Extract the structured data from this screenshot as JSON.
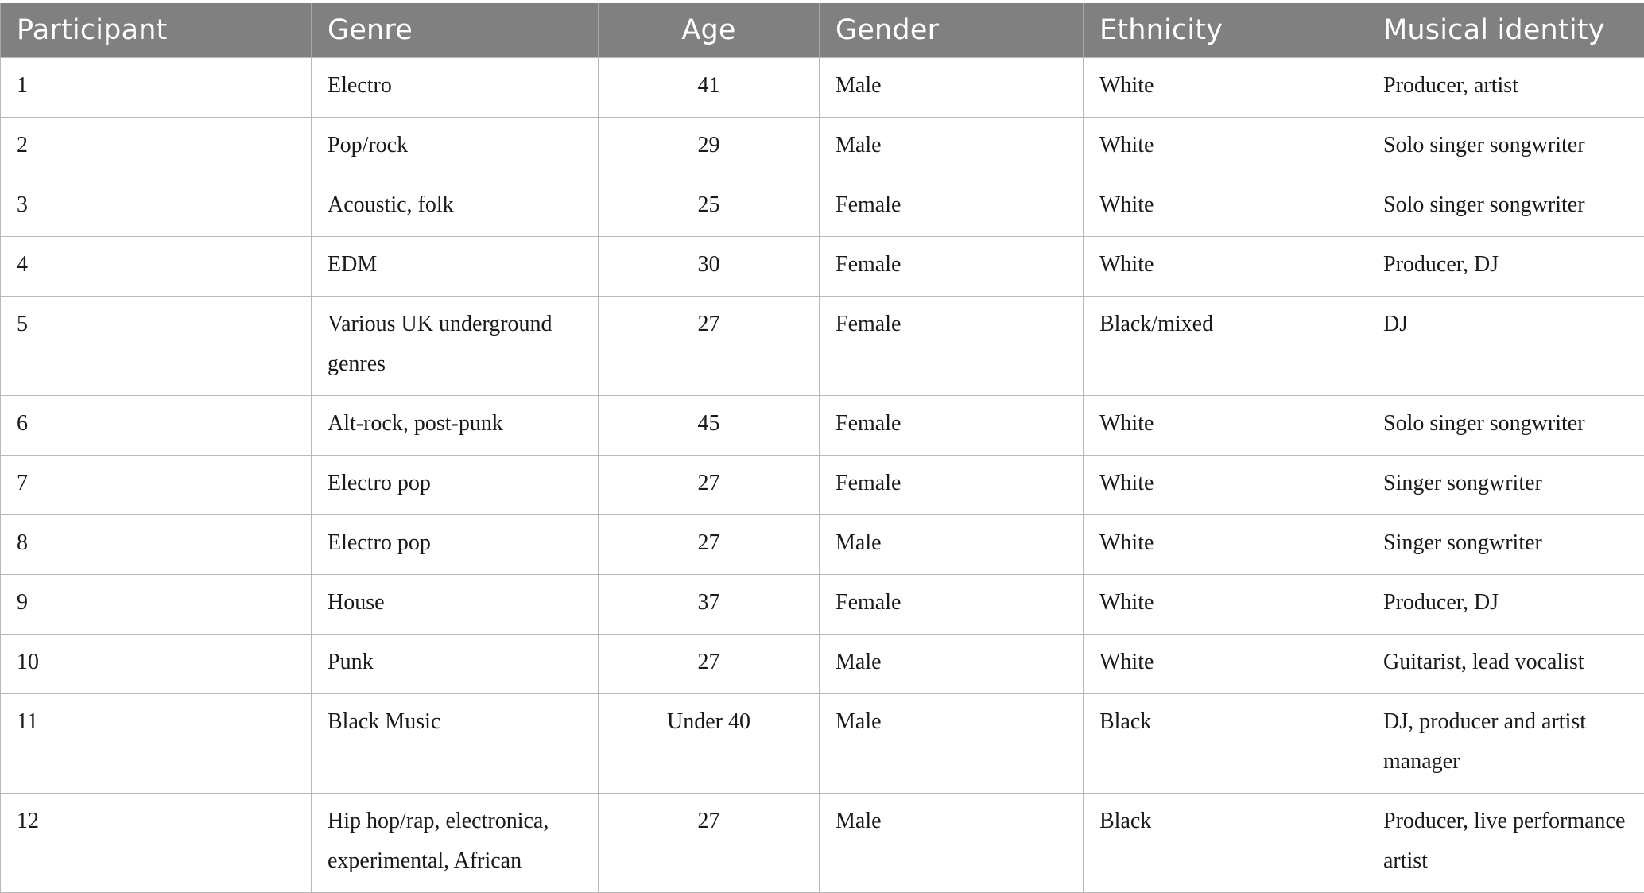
{
  "table": {
    "headers": [
      "Participant",
      "Genre",
      "Age",
      "Gender",
      "Ethnicity",
      "Musical identity"
    ],
    "rows": [
      [
        "1",
        "Electro",
        "41",
        "Male",
        "White",
        "Producer, artist"
      ],
      [
        "2",
        "Pop/rock",
        "29",
        "Male",
        "White",
        "Solo singer songwriter"
      ],
      [
        "3",
        "Acoustic, folk",
        "25",
        "Female",
        "White",
        "Solo singer songwriter"
      ],
      [
        "4",
        "EDM",
        "30",
        "Female",
        "White",
        "Producer, DJ"
      ],
      [
        "5",
        "Various UK underground genres",
        "27",
        "Female",
        "Black/mixed",
        "DJ"
      ],
      [
        "6",
        "Alt-rock, post-punk",
        "45",
        "Female",
        "White",
        "Solo singer songwriter"
      ],
      [
        "7",
        "Electro pop",
        "27",
        "Female",
        "White",
        "Singer songwriter"
      ],
      [
        "8",
        "Electro pop",
        "27",
        "Male",
        "White",
        "Singer songwriter"
      ],
      [
        "9",
        "House",
        "37",
        "Female",
        "White",
        "Producer, DJ"
      ],
      [
        "10",
        "Punk",
        "27",
        "Male",
        "White",
        "Guitarist, lead vocalist"
      ],
      [
        "11",
        "Black Music",
        "Under 40",
        "Male",
        "Black",
        "DJ, producer and artist manager"
      ],
      [
        "12",
        "Hip hop/rap, electronica, experimental, African",
        "27",
        "Male",
        "Black",
        "Producer, live performance artist"
      ]
    ]
  }
}
